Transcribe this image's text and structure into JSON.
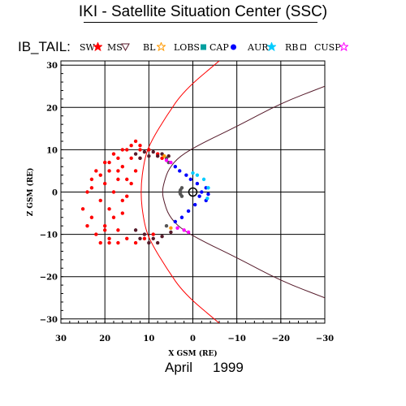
{
  "header": {
    "title": "IKI - Satellite Situation Center (SSC)",
    "mission": "IB_TAIL:"
  },
  "footer": {
    "month": "April",
    "year": "1999"
  },
  "colors": {
    "SW": "#ff0000",
    "MS": "#551a2a",
    "BL": "#555555",
    "LOBS": "#ff9900",
    "CAP": "#00e5ff",
    "AUR": "#0000ff",
    "RB": "#00e5ff",
    "CUSP": "#ff00ff",
    "boundary_bow_shock": "#ff0000",
    "boundary_magnetopause": "#551a2a"
  },
  "legend": [
    {
      "label": "SW",
      "marker": "star",
      "color": "#ff0000"
    },
    {
      "label": "MS",
      "marker": "triangle-down",
      "color": "#551a2a"
    },
    {
      "label": "BL",
      "marker": "star-outline",
      "color": "#ff9900"
    },
    {
      "label": "LOBS",
      "marker": "square",
      "color": "#00a0a0"
    },
    {
      "label": "CAP",
      "marker": "circle",
      "color": "#0000ff"
    },
    {
      "label": "AUR",
      "marker": "star",
      "color": "#00ccff"
    },
    {
      "label": "RB",
      "marker": "square-outline",
      "color": "#000000"
    },
    {
      "label": "CUSP",
      "marker": "star-outline",
      "color": "#ff00ff"
    }
  ],
  "chart_data": {
    "type": "scatter",
    "xlabel": "X GSM (RE)",
    "ylabel": "Z GSM (RE)",
    "xlim": [
      30,
      -30
    ],
    "ylim": [
      -31,
      31
    ],
    "xticks": [
      30,
      20,
      10,
      0,
      -10,
      -20,
      -30
    ],
    "yticks": [
      30,
      20,
      10,
      0,
      -10,
      -20,
      -30
    ],
    "xtick_labels": [
      "30",
      "20",
      "10",
      "0",
      "−10",
      "−20",
      "−30"
    ],
    "ytick_labels": [
      "30",
      "20",
      "10",
      "0",
      "−10",
      "−20",
      "−30"
    ],
    "grid": true,
    "earth": {
      "x": 0,
      "z": 0,
      "radius": 1
    },
    "boundaries": [
      {
        "name": "bow shock",
        "color": "#ff0000",
        "points": [
          [
            -6,
            31
          ],
          [
            2,
            24
          ],
          [
            6,
            18
          ],
          [
            9.5,
            12
          ],
          [
            11,
            8
          ],
          [
            12,
            0
          ],
          [
            11,
            -8
          ],
          [
            9.5,
            -12
          ],
          [
            6,
            -18
          ],
          [
            2,
            -24
          ],
          [
            -6,
            -31
          ]
        ]
      },
      {
        "name": "magnetopause",
        "color": "#551a2a",
        "points": [
          [
            -30,
            25
          ],
          [
            -20,
            21
          ],
          [
            -10,
            15.5
          ],
          [
            -2,
            11.5
          ],
          [
            3,
            8.5
          ],
          [
            5.5,
            5.5
          ],
          [
            6.5,
            2.5
          ],
          [
            7,
            0
          ],
          [
            6.5,
            -2.5
          ],
          [
            5.5,
            -5.5
          ],
          [
            3,
            -8.5
          ],
          [
            -2,
            -11.5
          ],
          [
            -10,
            -15.5
          ],
          [
            -20,
            -21
          ],
          [
            -30,
            -25
          ]
        ]
      }
    ],
    "series": [
      {
        "name": "SW",
        "color": "#ff0000",
        "points": [
          [
            25,
            -4
          ],
          [
            24,
            0
          ],
          [
            23,
            3
          ],
          [
            22,
            5
          ],
          [
            20,
            7
          ],
          [
            18,
            9
          ],
          [
            16,
            10
          ],
          [
            14,
            11
          ],
          [
            12,
            11
          ],
          [
            10,
            10
          ],
          [
            8,
            9
          ],
          [
            7,
            8
          ],
          [
            24,
            -8
          ],
          [
            23,
            -6
          ],
          [
            21,
            -2
          ],
          [
            20,
            2
          ],
          [
            19,
            5
          ],
          [
            17,
            8
          ],
          [
            15,
            10
          ],
          [
            13,
            12
          ],
          [
            22,
            -10
          ],
          [
            20,
            -8
          ],
          [
            19,
            -4
          ],
          [
            18,
            0
          ],
          [
            17,
            3
          ],
          [
            16,
            6
          ],
          [
            14,
            8
          ],
          [
            12,
            10
          ],
          [
            19,
            -12
          ],
          [
            17,
            -9
          ],
          [
            16,
            -5
          ],
          [
            15,
            -1
          ],
          [
            14,
            2
          ],
          [
            13,
            5
          ],
          [
            12,
            8
          ],
          [
            21,
            -12
          ],
          [
            19,
            -11
          ],
          [
            17,
            -12
          ],
          [
            15,
            -11
          ],
          [
            13,
            -12
          ],
          [
            11,
            -11
          ],
          [
            9,
            -10
          ],
          [
            23,
            1
          ],
          [
            21,
            4
          ],
          [
            19,
            7
          ],
          [
            17,
            5
          ],
          [
            15,
            3
          ],
          [
            16,
            -2
          ],
          [
            18,
            -6
          ],
          [
            20,
            -9
          ]
        ]
      },
      {
        "name": "MS",
        "color": "#551a2a",
        "points": [
          [
            13,
            9
          ],
          [
            11,
            9.5
          ],
          [
            9,
            9.5
          ],
          [
            7,
            9
          ],
          [
            5.5,
            8.5
          ],
          [
            12,
            8
          ],
          [
            10,
            8.5
          ],
          [
            8,
            8.5
          ],
          [
            13,
            -9
          ],
          [
            11,
            -10
          ],
          [
            9,
            -11
          ],
          [
            7,
            -10.5
          ],
          [
            5,
            -9.5
          ],
          [
            12,
            -11
          ],
          [
            10,
            -12
          ],
          [
            8,
            -12
          ]
        ]
      },
      {
        "name": "BL",
        "color": "#555555",
        "points": [
          [
            6,
            8
          ],
          [
            5.5,
            7
          ],
          [
            2.5,
            1
          ],
          [
            2.8,
            0.5
          ],
          [
            3,
            0
          ],
          [
            2.8,
            -0.5
          ],
          [
            2.5,
            -1
          ],
          [
            6,
            -8
          ]
        ]
      },
      {
        "name": "LOBS",
        "color": "#ff9900",
        "points": [
          [
            6.5,
            8.5
          ],
          [
            5,
            -8.5
          ]
        ]
      },
      {
        "name": "CAP",
        "color": "#0000ff",
        "points": [
          [
            4,
            6
          ],
          [
            3,
            5
          ],
          [
            1.5,
            4
          ],
          [
            0.5,
            3
          ],
          [
            -1,
            2
          ],
          [
            -2,
            0
          ],
          [
            -1.5,
            -1
          ],
          [
            -0.5,
            -3
          ],
          [
            1,
            -4.5
          ],
          [
            2.5,
            -6
          ],
          [
            4,
            -7
          ],
          [
            -3,
            -2
          ],
          [
            -3.5,
            -0.5
          ],
          [
            -3,
            1
          ]
        ]
      },
      {
        "name": "AUR",
        "color": "#00ccff",
        "points": [
          [
            0,
            4.5
          ],
          [
            -1,
            4
          ],
          [
            -2.5,
            3
          ],
          [
            -3.5,
            1
          ],
          [
            -3.3,
            -1.5
          ]
        ]
      },
      {
        "name": "CUSP",
        "color": "#ff00ff",
        "points": [
          [
            6,
            7.5
          ],
          [
            5,
            7
          ],
          [
            2,
            -9
          ],
          [
            1,
            -9.5
          ],
          [
            3.5,
            -8.5
          ]
        ]
      }
    ]
  }
}
